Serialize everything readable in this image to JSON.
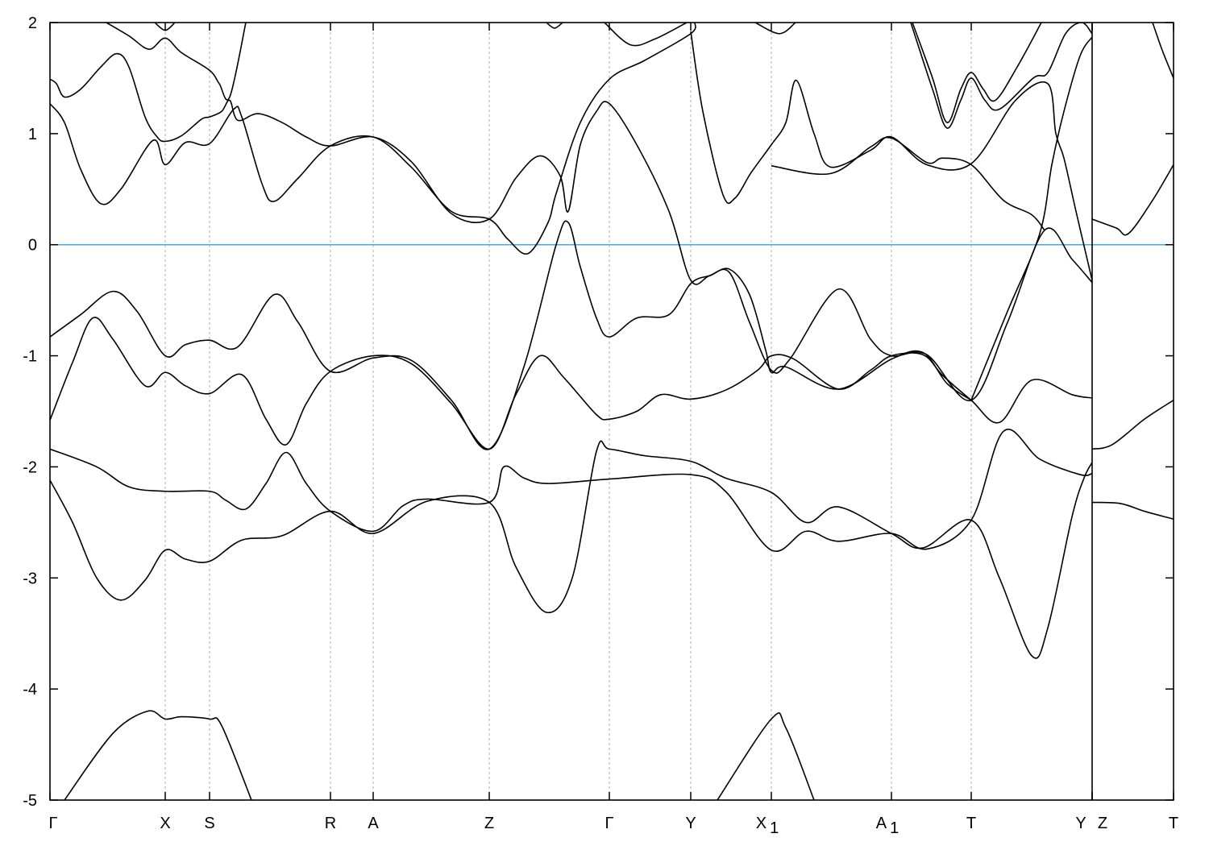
{
  "chart_data": {
    "type": "line",
    "title": "",
    "xlabel": "",
    "ylabel": "",
    "ylim": [
      -5,
      2
    ],
    "xlim": [
      0,
      13.94
    ],
    "yticks": [
      "2",
      "1",
      "0",
      "-1",
      "-2",
      "-3",
      "-4",
      "-5"
    ],
    "ytick_values": [
      2,
      1,
      0,
      -1,
      -2,
      -3,
      -4,
      -5
    ],
    "grid": "vertical dashed lines at high-symmetry points",
    "fermi_level": 0,
    "colors": {
      "bands": "#000000",
      "fermi": "#4aa8d8",
      "grid": "#999999"
    },
    "kpoints": [
      {
        "label": "Γ",
        "sub": "",
        "k": 0
      },
      {
        "label": "X",
        "sub": "",
        "k": 1.43
      },
      {
        "label": "S",
        "sub": "",
        "k": 1.98
      },
      {
        "label": "R",
        "sub": "",
        "k": 3.48
      },
      {
        "label": "A",
        "sub": "",
        "k": 4.01
      },
      {
        "label": "Z",
        "sub": "",
        "k": 5.45
      },
      {
        "label": "Γ",
        "sub": "",
        "k": 6.94
      },
      {
        "label": "Y",
        "sub": "",
        "k": 7.95
      },
      {
        "label": "X",
        "sub": "1",
        "k": 8.95
      },
      {
        "label": "A",
        "sub": "1",
        "k": 10.44
      },
      {
        "label": "T",
        "sub": "",
        "k": 11.43
      },
      {
        "label": "Y",
        "sub": "",
        "k": 12.93,
        "shift": "left"
      },
      {
        "label": "Z",
        "sub": "",
        "k": 12.93,
        "shift": "right"
      },
      {
        "label": "T",
        "sub": "",
        "k": 13.94
      }
    ],
    "path_break_k": 12.93,
    "bands": [
      [
        [
          0.18,
          -5
        ],
        [
          0.78,
          -4.4
        ],
        [
          1.21,
          -4.2
        ],
        [
          1.43,
          -4.27
        ],
        [
          1.63,
          -4.25
        ],
        [
          1.98,
          -4.27
        ],
        [
          2.13,
          -4.33
        ],
        [
          2.5,
          -5
        ]
      ],
      [
        [
          8.28,
          -5
        ],
        [
          8.95,
          -4.27
        ],
        [
          9.13,
          -4.35
        ],
        [
          9.48,
          -5
        ]
      ],
      [
        [
          0,
          -2.12
        ],
        [
          0.28,
          -2.5
        ],
        [
          0.58,
          -3.0
        ],
        [
          0.88,
          -3.2
        ],
        [
          1.18,
          -3.02
        ],
        [
          1.43,
          -2.75
        ],
        [
          1.68,
          -2.83
        ],
        [
          1.98,
          -2.85
        ],
        [
          2.38,
          -2.66
        ],
        [
          2.88,
          -2.62
        ],
        [
          3.48,
          -2.4
        ],
        [
          4.01,
          -2.6
        ],
        [
          4.68,
          -2.31
        ],
        [
          5.45,
          -2.32
        ],
        [
          5.78,
          -2.9
        ],
        [
          6.16,
          -3.31
        ],
        [
          6.48,
          -3.0
        ],
        [
          6.78,
          -1.86
        ],
        [
          6.94,
          -1.84
        ],
        [
          7.38,
          -1.9
        ],
        [
          7.95,
          -1.95
        ],
        [
          8.38,
          -2.1
        ],
        [
          8.95,
          -2.23
        ],
        [
          9.38,
          -2.5
        ],
        [
          9.78,
          -2.36
        ],
        [
          10.44,
          -2.6
        ],
        [
          10.83,
          -2.73
        ],
        [
          11.43,
          -2.48
        ],
        [
          11.78,
          -3.0
        ],
        [
          12.18,
          -3.7
        ],
        [
          12.38,
          -3.45
        ],
        [
          12.68,
          -2.45
        ],
        [
          12.83,
          -2.1
        ],
        [
          12.93,
          -1.96
        ]
      ],
      [
        [
          12.93,
          -2.32
        ],
        [
          13.28,
          -2.33
        ],
        [
          13.58,
          -2.4
        ],
        [
          13.94,
          -2.47
        ]
      ],
      [
        [
          0,
          -1.84
        ],
        [
          0.58,
          -2.0
        ],
        [
          0.98,
          -2.18
        ],
        [
          1.43,
          -2.22
        ],
        [
          1.98,
          -2.22
        ],
        [
          2.18,
          -2.3
        ],
        [
          2.43,
          -2.38
        ],
        [
          2.68,
          -2.15
        ],
        [
          2.93,
          -1.87
        ],
        [
          3.18,
          -2.15
        ],
        [
          3.48,
          -2.4
        ],
        [
          4.01,
          -2.58
        ],
        [
          4.38,
          -2.35
        ],
        [
          4.68,
          -2.29
        ],
        [
          5.45,
          -2.32
        ],
        [
          5.63,
          -2.0
        ],
        [
          5.88,
          -2.1
        ],
        [
          6.18,
          -2.15
        ],
        [
          6.94,
          -2.11
        ],
        [
          7.95,
          -2.07
        ],
        [
          8.38,
          -2.22
        ],
        [
          8.95,
          -2.75
        ],
        [
          9.38,
          -2.58
        ],
        [
          9.78,
          -2.67
        ],
        [
          10.44,
          -2.6
        ],
        [
          10.88,
          -2.74
        ],
        [
          11.43,
          -2.48
        ],
        [
          11.83,
          -1.68
        ],
        [
          12.28,
          -1.93
        ],
        [
          12.78,
          -2.07
        ],
        [
          12.93,
          -2.06
        ]
      ],
      [
        [
          0,
          -1.58
        ],
        [
          0.28,
          -1.06
        ],
        [
          0.53,
          -0.66
        ],
        [
          0.78,
          -0.85
        ],
        [
          1.18,
          -1.27
        ],
        [
          1.43,
          -1.15
        ],
        [
          1.68,
          -1.27
        ],
        [
          1.98,
          -1.34
        ],
        [
          2.38,
          -1.17
        ],
        [
          2.68,
          -1.57
        ],
        [
          2.93,
          -1.8
        ],
        [
          3.18,
          -1.43
        ],
        [
          3.48,
          -1.14
        ],
        [
          4.01,
          -1.0
        ],
        [
          4.48,
          -1.07
        ],
        [
          4.98,
          -1.43
        ],
        [
          5.45,
          -1.84
        ],
        [
          5.78,
          -1.35
        ],
        [
          6.08,
          -1.0
        ],
        [
          6.38,
          -1.2
        ],
        [
          6.78,
          -1.53
        ],
        [
          6.94,
          -1.57
        ],
        [
          7.28,
          -1.5
        ],
        [
          7.58,
          -1.35
        ],
        [
          7.95,
          -1.39
        ],
        [
          8.38,
          -1.31
        ],
        [
          8.78,
          -1.13
        ],
        [
          8.95,
          -1.0
        ],
        [
          9.23,
          -1.03
        ],
        [
          9.78,
          -1.3
        ],
        [
          10.18,
          -1.13
        ],
        [
          10.44,
          -1.0
        ],
        [
          10.83,
          -0.99
        ],
        [
          11.08,
          -1.18
        ],
        [
          11.43,
          -1.4
        ],
        [
          11.78,
          -1.6
        ],
        [
          12.18,
          -1.22
        ],
        [
          12.68,
          -1.35
        ],
        [
          12.93,
          -1.38
        ]
      ],
      [
        [
          12.93,
          -1.84
        ],
        [
          13.18,
          -1.8
        ],
        [
          13.58,
          -1.57
        ],
        [
          13.94,
          -1.4
        ]
      ],
      [
        [
          0,
          -0.83
        ],
        [
          0.38,
          -0.63
        ],
        [
          0.78,
          -0.42
        ],
        [
          1.08,
          -0.6
        ],
        [
          1.43,
          -1.0
        ],
        [
          1.68,
          -0.9
        ],
        [
          1.98,
          -0.86
        ],
        [
          2.33,
          -0.92
        ],
        [
          2.78,
          -0.45
        ],
        [
          3.08,
          -0.7
        ],
        [
          3.48,
          -1.14
        ],
        [
          4.01,
          -1.02
        ],
        [
          4.48,
          -1.04
        ],
        [
          4.98,
          -1.4
        ],
        [
          5.45,
          -1.84
        ],
        [
          5.88,
          -1.1
        ],
        [
          6.28,
          0.0
        ],
        [
          6.43,
          0.2
        ],
        [
          6.58,
          -0.2
        ],
        [
          6.78,
          -0.66
        ],
        [
          6.94,
          -0.83
        ],
        [
          7.28,
          -0.66
        ],
        [
          7.68,
          -0.63
        ],
        [
          7.95,
          -0.35
        ],
        [
          8.18,
          -0.28
        ],
        [
          8.43,
          -0.25
        ],
        [
          8.68,
          -0.7
        ],
        [
          8.95,
          -1.13
        ],
        [
          9.18,
          -1.03
        ],
        [
          9.78,
          -0.4
        ],
        [
          10.18,
          -0.85
        ],
        [
          10.44,
          -1.0
        ],
        [
          10.88,
          -0.99
        ],
        [
          11.43,
          -1.4
        ],
        [
          11.88,
          -0.7
        ],
        [
          12.34,
          0.13
        ],
        [
          12.68,
          -0.13
        ],
        [
          12.93,
          -0.34
        ]
      ],
      [
        [
          0,
          1.27
        ],
        [
          0.18,
          1.1
        ],
        [
          0.38,
          0.68
        ],
        [
          0.63,
          0.37
        ],
        [
          0.88,
          0.5
        ],
        [
          1.28,
          0.94
        ],
        [
          1.43,
          0.72
        ],
        [
          1.68,
          0.92
        ],
        [
          1.98,
          0.91
        ],
        [
          2.28,
          1.22
        ],
        [
          2.38,
          1.15
        ],
        [
          2.63,
          0.55
        ],
        [
          2.78,
          0.39
        ],
        [
          3.08,
          0.6
        ],
        [
          3.48,
          0.89
        ],
        [
          4.01,
          0.97
        ],
        [
          4.48,
          0.7
        ],
        [
          4.98,
          0.3
        ],
        [
          5.45,
          0.23
        ],
        [
          5.68,
          0.05
        ],
        [
          5.93,
          -0.08
        ],
        [
          6.18,
          0.2
        ],
        [
          6.28,
          0.46
        ],
        [
          6.58,
          1.1
        ],
        [
          6.94,
          1.49
        ],
        [
          7.38,
          1.66
        ],
        [
          7.95,
          1.9
        ],
        [
          8.0,
          2.0
        ]
      ],
      [
        [
          0,
          1.49
        ],
        [
          0.08,
          1.45
        ],
        [
          0.18,
          1.33
        ],
        [
          0.38,
          1.4
        ],
        [
          0.63,
          1.6
        ],
        [
          0.83,
          1.72
        ],
        [
          0.98,
          1.6
        ],
        [
          1.18,
          1.15
        ],
        [
          1.33,
          0.97
        ],
        [
          1.43,
          0.93
        ],
        [
          1.63,
          0.98
        ],
        [
          1.88,
          1.13
        ],
        [
          1.98,
          1.15
        ],
        [
          2.13,
          1.2
        ],
        [
          2.23,
          1.3
        ],
        [
          2.33,
          1.12
        ],
        [
          2.58,
          1.18
        ],
        [
          2.88,
          1.1
        ],
        [
          3.18,
          0.97
        ],
        [
          3.48,
          0.89
        ],
        [
          4.01,
          0.97
        ],
        [
          4.48,
          0.75
        ],
        [
          4.98,
          0.28
        ],
        [
          5.45,
          0.23
        ],
        [
          5.78,
          0.6
        ],
        [
          6.08,
          0.8
        ],
        [
          6.33,
          0.62
        ],
        [
          6.43,
          0.3
        ],
        [
          6.58,
          0.9
        ],
        [
          6.78,
          1.2
        ],
        [
          6.94,
          1.27
        ],
        [
          7.28,
          0.9
        ],
        [
          7.68,
          0.3
        ],
        [
          7.95,
          -0.32
        ],
        [
          8.18,
          -0.28
        ],
        [
          8.43,
          -0.22
        ],
        [
          8.68,
          -0.45
        ],
        [
          8.88,
          -0.95
        ],
        [
          8.95,
          -1.15
        ],
        [
          9.13,
          -1.1
        ],
        [
          9.78,
          -1.3
        ],
        [
          10.44,
          -1.03
        ],
        [
          10.83,
          -0.97
        ],
        [
          11.13,
          -1.25
        ],
        [
          11.43,
          -1.4
        ]
      ],
      [
        [
          7.95,
          1.92
        ],
        [
          8.1,
          1.2
        ],
        [
          8.35,
          0.45
        ],
        [
          8.5,
          0.42
        ],
        [
          8.7,
          0.65
        ],
        [
          8.95,
          0.9
        ],
        [
          9.13,
          1.1
        ],
        [
          9.26,
          1.48
        ],
        [
          9.48,
          1.0
        ],
        [
          9.68,
          0.7
        ],
        [
          10.18,
          0.85
        ],
        [
          10.44,
          0.97
        ],
        [
          10.88,
          0.72
        ],
        [
          11.43,
          0.73
        ],
        [
          11.98,
          1.3
        ],
        [
          12.38,
          1.45
        ],
        [
          12.48,
          1.0
        ],
        [
          12.58,
          0.78
        ],
        [
          12.73,
          0.3
        ],
        [
          12.93,
          -0.32
        ]
      ],
      [
        [
          8.95,
          0.71
        ],
        [
          9.68,
          0.64
        ],
        [
          10.18,
          0.88
        ],
        [
          10.44,
          0.96
        ],
        [
          10.88,
          0.74
        ],
        [
          11.08,
          0.78
        ],
        [
          11.43,
          0.72
        ],
        [
          11.83,
          0.4
        ],
        [
          12.18,
          0.27
        ],
        [
          12.34,
          0.13
        ]
      ],
      [
        [
          11.43,
          -1.4
        ],
        [
          11.88,
          -0.6
        ],
        [
          12.28,
          0.1
        ],
        [
          12.43,
          0.72
        ],
        [
          12.58,
          1.2
        ],
        [
          12.78,
          1.7
        ],
        [
          12.93,
          1.87
        ]
      ],
      [
        [
          12.93,
          0.23
        ],
        [
          13.23,
          0.15
        ],
        [
          13.38,
          0.1
        ],
        [
          13.68,
          0.4
        ],
        [
          13.94,
          0.72
        ]
      ],
      [
        [
          13.68,
          2.0
        ],
        [
          13.8,
          1.75
        ],
        [
          13.94,
          1.5
        ]
      ],
      [
        [
          0.7,
          2.0
        ],
        [
          0.98,
          1.88
        ],
        [
          1.23,
          1.76
        ],
        [
          1.43,
          1.86
        ],
        [
          1.63,
          1.73
        ],
        [
          1.98,
          1.57
        ],
        [
          2.1,
          1.45
        ],
        [
          2.23,
          1.33
        ],
        [
          2.43,
          2.0
        ]
      ],
      [
        [
          1.3,
          2.0
        ],
        [
          1.43,
          1.93
        ],
        [
          1.55,
          2.0
        ]
      ],
      [
        [
          6.16,
          2.0
        ],
        [
          6.26,
          1.95
        ],
        [
          6.36,
          2.0
        ]
      ],
      [
        [
          6.88,
          2.0
        ],
        [
          7.2,
          1.8
        ],
        [
          7.5,
          1.85
        ],
        [
          7.9,
          2.0
        ]
      ],
      [
        [
          8.75,
          2.0
        ],
        [
          9.05,
          1.9
        ],
        [
          9.25,
          2.0
        ]
      ],
      [
        [
          10.7,
          2.0
        ],
        [
          10.95,
          1.5
        ],
        [
          11.13,
          1.1
        ],
        [
          11.3,
          1.4
        ],
        [
          11.43,
          1.55
        ],
        [
          11.58,
          1.4
        ],
        [
          11.73,
          1.3
        ],
        [
          12.0,
          1.6
        ],
        [
          12.3,
          2.0
        ]
      ],
      [
        [
          10.68,
          2.0
        ],
        [
          10.95,
          1.4
        ],
        [
          11.13,
          1.05
        ],
        [
          11.3,
          1.3
        ],
        [
          11.43,
          1.5
        ],
        [
          11.6,
          1.3
        ],
        [
          11.78,
          1.22
        ],
        [
          12.2,
          1.5
        ],
        [
          12.38,
          1.55
        ],
        [
          12.6,
          1.9
        ],
        [
          12.8,
          2.0
        ],
        [
          12.93,
          1.9
        ]
      ]
    ]
  }
}
